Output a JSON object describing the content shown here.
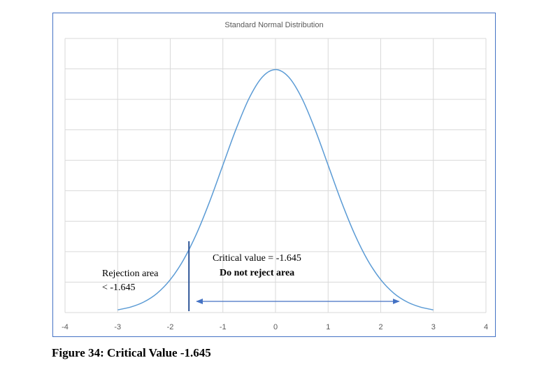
{
  "chart_data": {
    "type": "line",
    "title": "Standard Normal Distribution",
    "xlabel": "",
    "ylabel": "",
    "xlim": [
      -4,
      4
    ],
    "xticks": [
      "-4",
      "-3",
      "-2",
      "-1",
      "0",
      "1",
      "2",
      "3",
      "4"
    ],
    "ylim": [
      0,
      0.45
    ],
    "grid": true,
    "legend": "none",
    "series": [
      {
        "x": [
          -3.0,
          -2.75,
          -2.5,
          -2.25,
          -2.0,
          -1.75,
          -1.5,
          -1.25,
          -1.0,
          -0.75,
          -0.5,
          -0.25,
          0.0,
          0.25,
          0.5,
          0.75,
          1.0,
          1.25,
          1.5,
          1.75,
          2.0,
          2.25,
          2.5,
          2.75,
          3.0
        ],
        "y": [
          0.0044,
          0.0091,
          0.0175,
          0.0317,
          0.054,
          0.0863,
          0.1295,
          0.1826,
          0.242,
          0.3011,
          0.3521,
          0.3867,
          0.3989,
          0.3867,
          0.3521,
          0.3011,
          0.242,
          0.1826,
          0.1295,
          0.0863,
          0.054,
          0.0317,
          0.0175,
          0.0091,
          0.0044
        ]
      }
    ],
    "critical_value": -1.645,
    "arrow_range": [
      -1.5,
      2.35
    ],
    "annotations": {
      "rejection_line1": "Rejection area",
      "rejection_line2": "< -1.645",
      "critical_label": "Critical value = -1.645",
      "do_not_reject": "Do not reject area"
    }
  },
  "caption": "Figure 34: Critical Value -1.645",
  "colors": {
    "curve": "#5b9bd5",
    "critical_line": "#2e5597",
    "arrow": "#4472c4",
    "grid": "#d9d9d9",
    "frame": "#4472c4"
  }
}
